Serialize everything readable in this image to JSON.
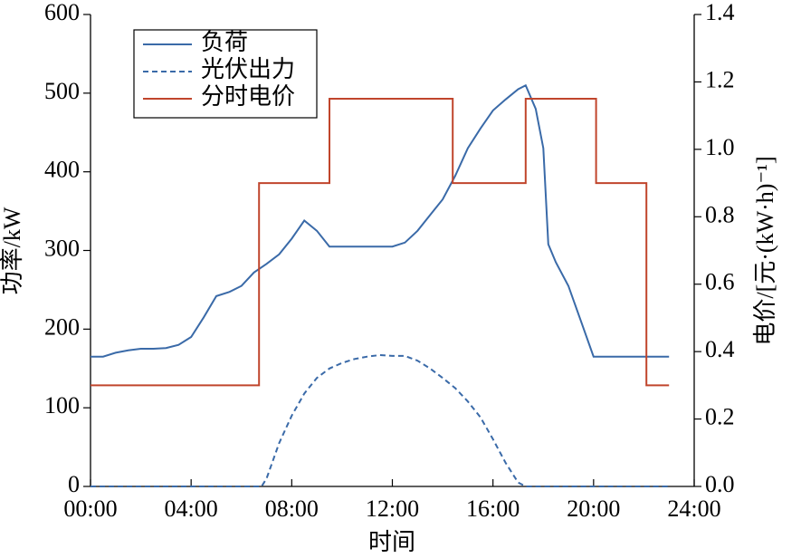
{
  "chart_data": {
    "type": "line",
    "xlabel": "时间",
    "ylabel": "功率/kW",
    "y2label": "电价/[元·(kW·h)⁻¹]",
    "xlim": [
      0,
      24
    ],
    "xticks": [
      {
        "value": 0,
        "label": "00:00"
      },
      {
        "value": 4,
        "label": "04:00"
      },
      {
        "value": 8,
        "label": "08:00"
      },
      {
        "value": 12,
        "label": "12:00"
      },
      {
        "value": 16,
        "label": "16:00"
      },
      {
        "value": 20,
        "label": "20:00"
      },
      {
        "value": 24,
        "label": "24:00"
      }
    ],
    "ylim": [
      0,
      600
    ],
    "yticks": [
      0,
      100,
      200,
      300,
      400,
      500,
      600
    ],
    "y2lim": [
      0,
      1.4
    ],
    "y2ticks": [
      {
        "value": 0,
        "label": "0.0"
      },
      {
        "value": 0.2,
        "label": "0.2"
      },
      {
        "value": 0.4,
        "label": "0.4"
      },
      {
        "value": 0.6,
        "label": "0.6"
      },
      {
        "value": 0.8,
        "label": "0.8"
      },
      {
        "value": 1,
        "label": "1.0"
      },
      {
        "value": 1.2,
        "label": "1.2"
      },
      {
        "value": 1.4,
        "label": "1.4"
      }
    ],
    "legend": "upper left",
    "series": [
      {
        "name": "负荷",
        "color": "#3a6aa8",
        "linestyle": "solid",
        "x": [
          0,
          0.5,
          1,
          1.5,
          2,
          2.5,
          3,
          3.5,
          4,
          4.5,
          5,
          5.5,
          6,
          6.5,
          7,
          7.5,
          8,
          8.5,
          9,
          9.5,
          10,
          10.5,
          11,
          11.5,
          12,
          12.5,
          13,
          13.5,
          14,
          14.5,
          15,
          15.5,
          16,
          16.5,
          17,
          17.3,
          17.7,
          18,
          18.2,
          18.5,
          19,
          19.5,
          20,
          20.5,
          21,
          21.5,
          22,
          22.5,
          23
        ],
        "values": [
          165,
          165,
          170,
          173,
          175,
          175,
          176,
          180,
          190,
          215,
          242,
          247,
          255,
          272,
          283,
          295,
          315,
          338,
          325,
          305,
          305,
          305,
          305,
          305,
          305,
          310,
          325,
          345,
          365,
          395,
          430,
          455,
          478,
          492,
          505,
          510,
          480,
          430,
          308,
          285,
          255,
          210,
          165,
          165,
          165,
          165,
          165,
          165,
          165
        ]
      },
      {
        "name": "光伏出力",
        "color": "#3a6aa8",
        "linestyle": "dashed",
        "x": [
          0,
          6.8,
          7,
          7.5,
          8,
          8.5,
          9,
          9.5,
          10,
          10.5,
          11,
          11.5,
          12,
          12.5,
          13,
          13.5,
          14,
          14.5,
          15,
          15.5,
          16,
          16.5,
          17,
          17.3,
          23
        ],
        "values": [
          0,
          0,
          10,
          55,
          90,
          118,
          138,
          150,
          157,
          162,
          165,
          167,
          166,
          166,
          160,
          150,
          138,
          125,
          108,
          88,
          60,
          30,
          5,
          0,
          0
        ]
      },
      {
        "name": "分时电价",
        "color": "#c0452c",
        "linestyle": "solid",
        "axis": "y2",
        "x": [
          0,
          6.7,
          6.7,
          9.5,
          9.5,
          14.4,
          14.4,
          17.3,
          17.3,
          20.1,
          20.1,
          22.1,
          22.1,
          23
        ],
        "values": [
          0.3,
          0.3,
          0.9,
          0.9,
          1.15,
          1.15,
          0.9,
          0.9,
          1.15,
          1.15,
          0.9,
          0.9,
          0.3,
          0.3
        ]
      }
    ]
  }
}
